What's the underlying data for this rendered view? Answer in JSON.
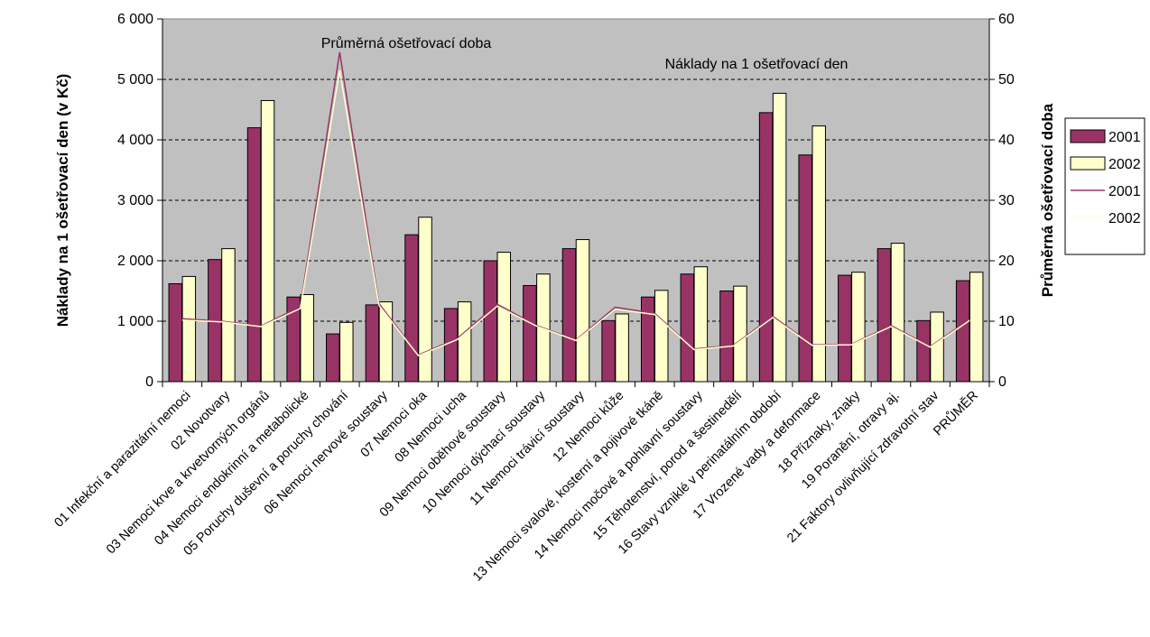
{
  "chart_data": {
    "type": "bar",
    "categories": [
      "01 Infekční a parazitární nemoci",
      "02 Novotvary",
      "03 Nemoci krve a krvetvorných orgánů",
      "04 Nemoci endokrinní a metabolické",
      "05 Poruchy duševní a poruchy chování",
      "06 Nemoci nervové soustavy",
      "07 Nemoci oka",
      "08 Nemoci ucha",
      "09 Nemoci oběhové soustavy",
      "10 Nemoci dýchací soustavy",
      "11 Nemoci trávicí soustavy",
      "12 Nemoci kůže",
      "13 Nemoci svalové, kosterní a pojivové tkáně",
      "14 Nemoci močové a pohlavní soustavy",
      "15 Těhotenství, porod a šestinedělí",
      "16 Stavy vzniklé v perinatálním období",
      "17 Vrozené vady a deformace",
      "18 Příznaky, znaky",
      "19 Poranění, otravy aj.",
      "21 Faktory ovlivňující zdravotní stav",
      "PRŮMĚR"
    ],
    "bar_series": [
      {
        "name": "2001",
        "color": "#993366",
        "axis": "left",
        "values": [
          1620,
          2020,
          4200,
          1400,
          790,
          1270,
          2430,
          1210,
          2000,
          1590,
          2200,
          1010,
          1400,
          1780,
          1500,
          4450,
          3750,
          1760,
          2200,
          1010,
          1670
        ]
      },
      {
        "name": "2002",
        "color": "#FFFFCC",
        "axis": "left",
        "values": [
          1740,
          2200,
          4650,
          1440,
          980,
          1320,
          2720,
          1320,
          2140,
          1780,
          2350,
          1120,
          1510,
          1900,
          1580,
          4770,
          4230,
          1810,
          2290,
          1150,
          1810
        ]
      }
    ],
    "line_series": [
      {
        "name": "2001",
        "color": "#993366",
        "axis": "right",
        "values": [
          10.4,
          10.0,
          9.2,
          12.4,
          54.5,
          12.9,
          4.4,
          7.2,
          12.8,
          9.3,
          6.9,
          12.3,
          11.3,
          5.4,
          6.0,
          10.8,
          6.1,
          6.2,
          9.3,
          5.8,
          10.3
        ]
      },
      {
        "name": "2002",
        "color": "#FFFFCC",
        "axis": "right",
        "values": [
          10.2,
          9.9,
          9.1,
          12.1,
          51.5,
          12.6,
          4.3,
          7.0,
          12.5,
          9.2,
          6.8,
          12.0,
          11.1,
          5.3,
          5.9,
          10.6,
          6.0,
          6.1,
          9.1,
          5.7,
          10.1
        ]
      }
    ],
    "ylabel": "Náklady na 1 ošetřovací den (v Kč)",
    "y2label": "Průměrná ošetřovací doba",
    "ylim": [
      0,
      6000
    ],
    "y2lim": [
      0,
      60
    ],
    "yticks": [
      "0",
      "1 000",
      "2 000",
      "3 000",
      "4 000",
      "5 000",
      "6 000"
    ],
    "y2ticks": [
      "0",
      "10",
      "20",
      "30",
      "40",
      "50",
      "60"
    ],
    "annotations": [
      "Průměrná ošetřovací doba",
      "Náklady na 1 ošetřovací den"
    ],
    "plot_background": "#C0C0C0",
    "grid": "horizontal dashed",
    "legend": {
      "placement": "right",
      "items": [
        {
          "label": "2001",
          "kind": "bar"
        },
        {
          "label": "2002",
          "kind": "bar"
        },
        {
          "label": "2001",
          "kind": "line"
        },
        {
          "label": "2002",
          "kind": "line"
        }
      ]
    }
  }
}
